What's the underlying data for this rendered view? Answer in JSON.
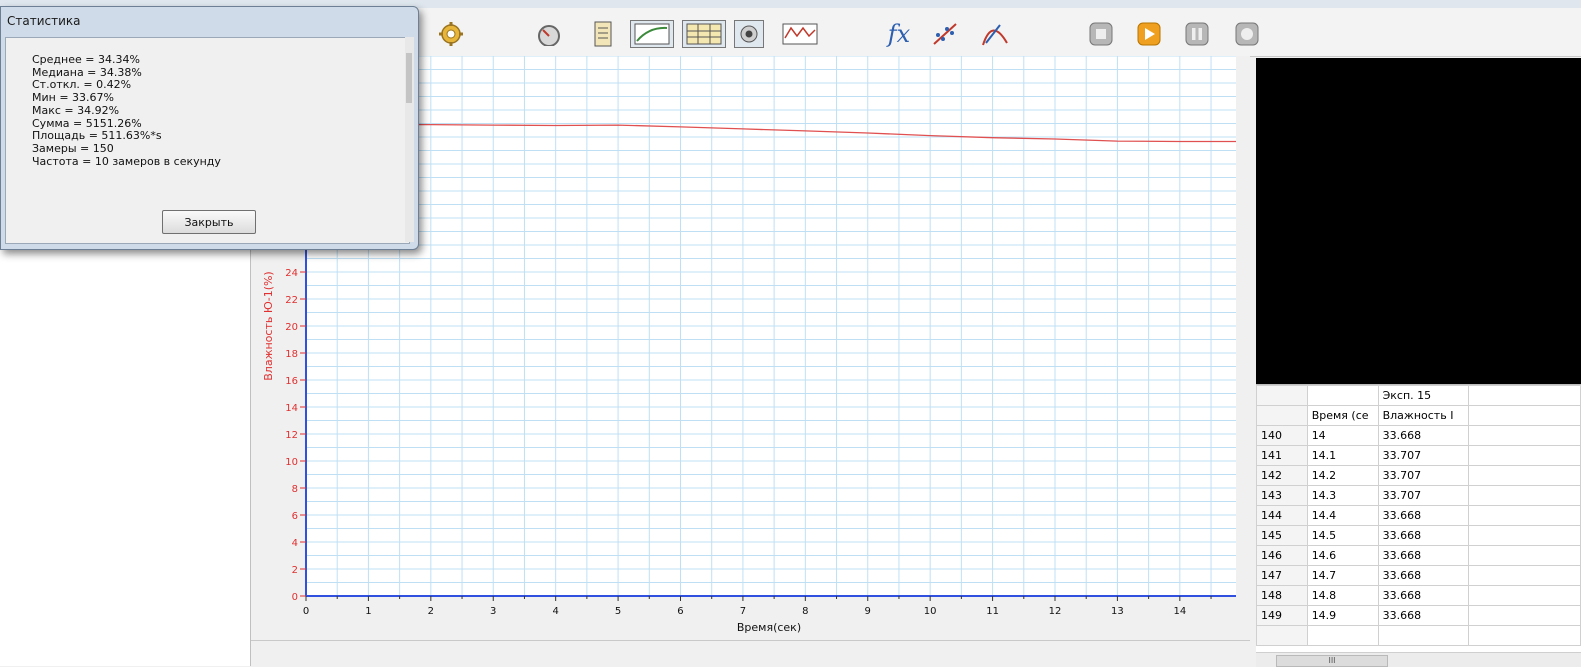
{
  "toolbar": {
    "icons": [
      "gear-icon",
      "meter-icon",
      "sensor-list-icon",
      "graph-view-icon",
      "table-view-icon",
      "camera-icon",
      "chart-wave-icon",
      "function-icon",
      "scatter-fit-icon",
      "curve-fit-icon",
      "stop-icon",
      "play-icon",
      "pause-icon",
      "record-icon"
    ],
    "function_label": "fx",
    "accent": "#f0a020"
  },
  "dialog": {
    "title": "Статистика",
    "stats": [
      "Среднее = 34.34%",
      "Медиана = 34.38%",
      "Ст.откл. = 0.42%",
      "Мин = 33.67%",
      "Макс = 34.92%",
      "Сумма = 5151.26%",
      "Площадь = 511.63%*s",
      "Замеры = 150",
      "Частота = 10 замеров в секунду"
    ],
    "close_label": "Закрыть"
  },
  "chart_data": {
    "type": "line",
    "xlabel": "Время(сек)",
    "ylabel": "Влажность Ю-1(%)",
    "xlim": [
      0,
      14.9
    ],
    "ylim": [
      0,
      40
    ],
    "x_ticks": [
      0,
      1,
      2,
      3,
      4,
      5,
      6,
      7,
      8,
      9,
      10,
      11,
      12,
      13,
      14
    ],
    "y_ticks": [
      0,
      2,
      4,
      6,
      8,
      10,
      12,
      14,
      16,
      18,
      20,
      22,
      24
    ],
    "grid": true,
    "series": [
      {
        "color": "#e05050",
        "x": [
          0,
          1,
          2,
          3,
          4,
          5,
          6,
          7,
          8,
          9,
          10,
          11,
          12,
          13,
          14,
          14.9
        ],
        "y": [
          34.92,
          34.92,
          34.92,
          34.88,
          34.85,
          34.88,
          34.75,
          34.6,
          34.45,
          34.3,
          34.1,
          33.95,
          33.85,
          33.7,
          33.67,
          33.67
        ]
      }
    ]
  },
  "table": {
    "exp_label": "Эксп. 15",
    "col_time": "Время (се",
    "col_value": "Влажность I",
    "rows": [
      {
        "n": "140",
        "t": "14",
        "v": "33.668"
      },
      {
        "n": "141",
        "t": "14.1",
        "v": "33.707"
      },
      {
        "n": "142",
        "t": "14.2",
        "v": "33.707"
      },
      {
        "n": "143",
        "t": "14.3",
        "v": "33.707"
      },
      {
        "n": "144",
        "t": "14.4",
        "v": "33.668"
      },
      {
        "n": "145",
        "t": "14.5",
        "v": "33.668"
      },
      {
        "n": "146",
        "t": "14.6",
        "v": "33.668"
      },
      {
        "n": "147",
        "t": "14.7",
        "v": "33.668"
      },
      {
        "n": "148",
        "t": "14.8",
        "v": "33.668"
      },
      {
        "n": "149",
        "t": "14.9",
        "v": "33.668"
      }
    ]
  },
  "hscroll": {
    "thumb_label": "III"
  }
}
